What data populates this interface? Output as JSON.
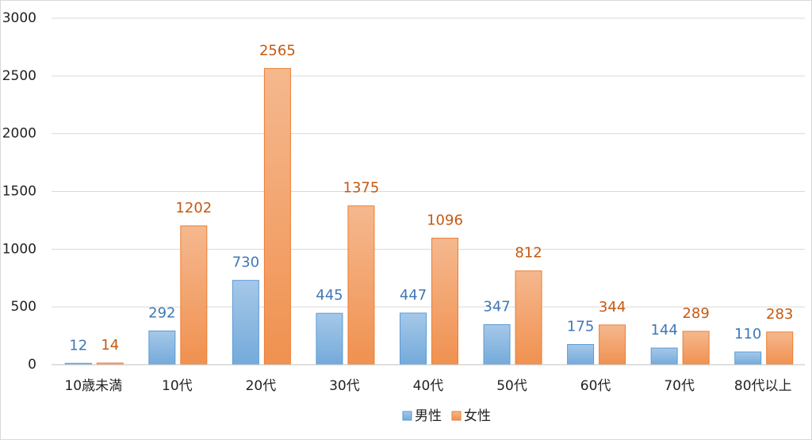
{
  "chart_data": {
    "type": "bar",
    "categories": [
      "10歳未満",
      "10代",
      "20代",
      "30代",
      "40代",
      "50代",
      "60代",
      "70代",
      "80代以上"
    ],
    "series": [
      {
        "name": "男性",
        "color": "#5b9bd5",
        "label_color": "#3f78b5",
        "values": [
          12,
          292,
          730,
          445,
          447,
          347,
          175,
          144,
          110
        ]
      },
      {
        "name": "女性",
        "color": "#ed7d31",
        "label_color": "#c55a11",
        "values": [
          14,
          1202,
          2565,
          1375,
          1096,
          812,
          344,
          289,
          283
        ]
      }
    ],
    "ylim": [
      0,
      3000
    ],
    "yticks": [
      0,
      500,
      1000,
      1500,
      2000,
      2500,
      3000
    ],
    "grid": true,
    "legend": "bottom"
  }
}
